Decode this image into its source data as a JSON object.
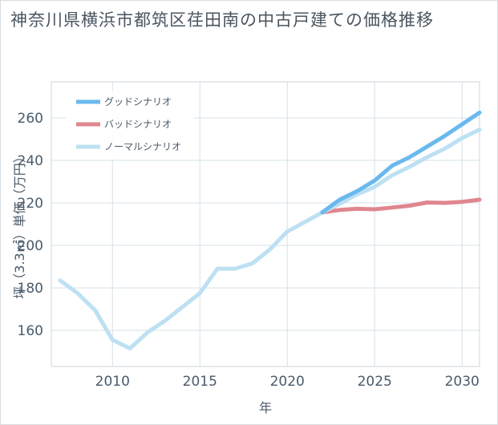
{
  "chart_data": {
    "type": "line",
    "title": "神奈川県横浜市都筑区荏田南の中古戸建ての価格推移",
    "xlabel": "年",
    "ylabel": "坪（3.3㎡）単価（万円）",
    "xlim": [
      2006.5,
      2031
    ],
    "ylim": [
      143,
      277
    ],
    "xticks": [
      2010,
      2015,
      2020,
      2025,
      2030
    ],
    "yticks": [
      160,
      180,
      200,
      220,
      240,
      260
    ],
    "xtick_labels": [
      "2010",
      "2015",
      "2020",
      "2025",
      "2030"
    ],
    "ytick_labels": [
      "160",
      "180",
      "200",
      "220",
      "240",
      "260"
    ],
    "legend_position": "top-left",
    "series": [
      {
        "name": "グッドシナリオ",
        "color": "#6ab9ee",
        "x": [
          2022,
          2023,
          2024,
          2025,
          2026,
          2027,
          2028,
          2029,
          2030,
          2031
        ],
        "values": [
          215.5,
          221.5,
          225.5,
          230.5,
          237.5,
          241.5,
          246.5,
          251.5,
          257,
          262.5
        ]
      },
      {
        "name": "バッドシナリオ",
        "color": "#e0868f",
        "x": [
          2022,
          2023,
          2024,
          2025,
          2026,
          2027,
          2028,
          2029,
          2030,
          2031
        ],
        "values": [
          215.5,
          216.7,
          217.2,
          217.0,
          217.8,
          218.7,
          220.2,
          220.0,
          220.5,
          221.5
        ]
      },
      {
        "name": "ノーマルシナリオ",
        "color": "#bde0f2",
        "x": [
          2007,
          2008,
          2009,
          2010,
          2011,
          2012,
          2013,
          2014,
          2015,
          2016,
          2017,
          2018,
          2019,
          2020,
          2021,
          2022,
          2023,
          2024,
          2025,
          2026,
          2027,
          2028,
          2029,
          2030,
          2031
        ],
        "values": [
          183.5,
          177.5,
          169.5,
          155.5,
          151.5,
          159,
          164.5,
          171,
          177.5,
          189,
          189,
          191.5,
          198,
          206.5,
          211,
          215.5,
          219.5,
          224,
          227.5,
          233,
          237,
          241.5,
          245.5,
          250.5,
          254.5
        ]
      }
    ]
  }
}
